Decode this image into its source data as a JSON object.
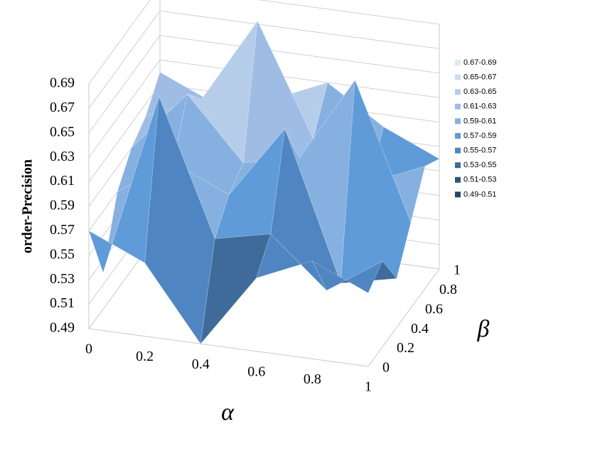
{
  "chart_data": {
    "type": "surface",
    "z_title": "order-Precision",
    "x_title": "α",
    "y_title": "β",
    "x": [
      0,
      0.2,
      0.4,
      0.6,
      0.8,
      1
    ],
    "y": [
      0,
      0.2,
      0.4,
      0.6,
      0.8,
      1
    ],
    "z": [
      [
        0.57,
        0.55,
        0.49,
        0.55,
        0.57,
        0.55
      ],
      [
        0.52,
        0.67,
        0.56,
        0.57,
        0.53,
        0.56
      ],
      [
        0.57,
        0.6,
        0.58,
        0.64,
        0.52,
        0.53
      ],
      [
        0.59,
        0.64,
        0.59,
        0.6,
        0.67,
        0.56
      ],
      [
        0.6,
        0.62,
        0.69,
        0.6,
        0.57,
        0.59
      ],
      [
        0.62,
        0.6,
        0.61,
        0.63,
        0.6,
        0.58
      ]
    ],
    "xlim": [
      0,
      1
    ],
    "ylim": [
      0,
      1
    ],
    "zlim": [
      0.49,
      0.69
    ],
    "xticks": [
      0,
      0.2,
      0.4,
      0.6,
      0.8,
      1
    ],
    "yticks": [
      0,
      0.2,
      0.4,
      0.6,
      0.8,
      1
    ],
    "zticks": [
      0.49,
      0.51,
      0.53,
      0.55,
      0.57,
      0.59,
      0.61,
      0.63,
      0.65,
      0.67,
      0.69
    ],
    "bands": [
      {
        "label": "0.67-0.69",
        "range": [
          0.67,
          0.69
        ],
        "color": "#dcebf7"
      },
      {
        "label": "0.65-0.67",
        "range": [
          0.65,
          0.67
        ],
        "color": "#c9def2"
      },
      {
        "label": "0.63-0.65",
        "range": [
          0.63,
          0.65
        ],
        "color": "#b6cde9"
      },
      {
        "label": "0.61-0.63",
        "range": [
          0.61,
          0.63
        ],
        "color": "#9fbde4"
      },
      {
        "label": "0.59-0.61",
        "range": [
          0.59,
          0.61
        ],
        "color": "#85b0e0"
      },
      {
        "label": "0.57-0.59",
        "range": [
          0.57,
          0.59
        ],
        "color": "#5f9bd8"
      },
      {
        "label": "0.55-0.57",
        "range": [
          0.55,
          0.57
        ],
        "color": "#4f86c1"
      },
      {
        "label": "0.53-0.55",
        "range": [
          0.53,
          0.55
        ],
        "color": "#3e6b9a"
      },
      {
        "label": "0.51-0.53",
        "range": [
          0.51,
          0.53
        ],
        "color": "#2f5577"
      },
      {
        "label": "0.49-0.51",
        "range": [
          0.49,
          0.51
        ],
        "color": "#254560"
      }
    ]
  }
}
